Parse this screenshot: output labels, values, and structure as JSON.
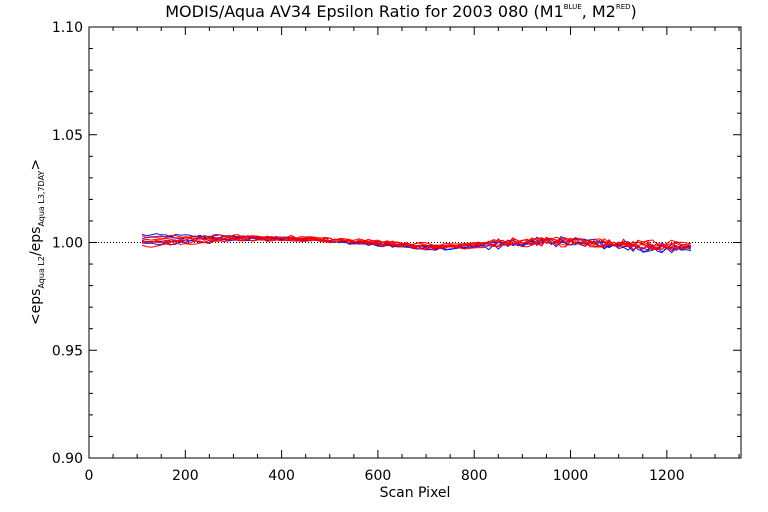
{
  "chart_data": {
    "type": "line",
    "title": {
      "main": "MODIS/Aqua AV34 Epsilon Ratio for 2003 080 (M1",
      "sup1": "BLUE",
      "mid": ", M2",
      "sup2": "RED",
      "end": ")"
    },
    "xlabel": "Scan Pixel",
    "ylabel": {
      "p1": "<eps",
      "sub1": "Aqua L2",
      "p2": "/eps",
      "sub2": "Aqua L3,7DAY",
      "p3": ">"
    },
    "xlim": [
      0,
      1354
    ],
    "ylim": [
      0.9,
      1.1
    ],
    "xticks": [
      "0",
      "200",
      "400",
      "600",
      "800",
      "1000",
      "1200"
    ],
    "xtick_values": [
      0,
      200,
      400,
      600,
      800,
      1000,
      1200
    ],
    "yticks": [
      "0.90",
      "0.95",
      "1.00",
      "1.05",
      "1.10"
    ],
    "ytick_values": [
      0.9,
      0.95,
      1.0,
      1.05,
      1.1
    ],
    "reference_line": 1.0,
    "x_range": [
      110,
      1250
    ],
    "x_step": 10,
    "blue_color": "#1010e0",
    "red_color": "#ff0000",
    "series": [
      {
        "color": "blue",
        "base": [
          [
            110,
            1.0035
          ],
          [
            300,
            1.0025
          ],
          [
            450,
            1.001
          ],
          [
            600,
            0.999
          ],
          [
            720,
            0.997
          ],
          [
            800,
            0.998
          ],
          [
            950,
            1.0
          ],
          [
            1100,
            0.998
          ],
          [
            1200,
            0.996
          ],
          [
            1250,
            0.997
          ]
        ]
      },
      {
        "color": "blue",
        "base": [
          [
            110,
            1.002
          ],
          [
            300,
            1.003
          ],
          [
            450,
            1.0015
          ],
          [
            600,
            1.0
          ],
          [
            720,
            0.9975
          ],
          [
            800,
            0.999
          ],
          [
            950,
            1.001
          ],
          [
            1100,
            0.999
          ],
          [
            1200,
            0.997
          ],
          [
            1250,
            0.998
          ]
        ]
      },
      {
        "color": "blue",
        "base": [
          [
            110,
            1.0
          ],
          [
            300,
            1.002
          ],
          [
            450,
            1.002
          ],
          [
            600,
            0.9995
          ],
          [
            720,
            0.998
          ],
          [
            800,
            0.999
          ],
          [
            950,
            1.0015
          ],
          [
            1100,
            0.999
          ],
          [
            1200,
            0.998
          ],
          [
            1250,
            0.998
          ]
        ]
      },
      {
        "color": "blue",
        "base": [
          [
            110,
            0.999
          ],
          [
            300,
            1.0015
          ],
          [
            450,
            1.0015
          ],
          [
            600,
            0.999
          ],
          [
            720,
            0.997
          ],
          [
            800,
            0.998
          ],
          [
            950,
            1.0
          ],
          [
            1100,
            0.998
          ],
          [
            1200,
            0.997
          ],
          [
            1250,
            0.997
          ]
        ]
      },
      {
        "color": "red",
        "base": [
          [
            110,
            1.0015
          ],
          [
            300,
            1.0025
          ],
          [
            450,
            1.002
          ],
          [
            600,
            1.0005
          ],
          [
            720,
            0.9985
          ],
          [
            800,
            0.999
          ],
          [
            950,
            1.001
          ],
          [
            1100,
            0.9995
          ],
          [
            1200,
            0.998
          ],
          [
            1250,
            0.999
          ]
        ]
      },
      {
        "color": "red",
        "base": [
          [
            110,
            1.0005
          ],
          [
            300,
            1.002
          ],
          [
            450,
            1.0015
          ],
          [
            600,
            1.0
          ],
          [
            720,
            0.998
          ],
          [
            800,
            0.9995
          ],
          [
            950,
            1.0005
          ],
          [
            1100,
            0.9995
          ],
          [
            1200,
            0.999
          ],
          [
            1250,
            0.9985
          ]
        ]
      },
      {
        "color": "red",
        "base": [
          [
            110,
            0.9995
          ],
          [
            300,
            1.0015
          ],
          [
            450,
            1.001
          ],
          [
            600,
            0.9995
          ],
          [
            720,
            0.9975
          ],
          [
            800,
            0.999
          ],
          [
            950,
            1.001
          ],
          [
            1100,
            0.999
          ],
          [
            1200,
            0.998
          ],
          [
            1250,
            0.998
          ]
        ]
      },
      {
        "color": "red",
        "base": [
          [
            110,
            0.998
          ],
          [
            300,
            1.001
          ],
          [
            450,
            1.0015
          ],
          [
            600,
            0.999
          ],
          [
            720,
            0.997
          ],
          [
            800,
            0.998
          ],
          [
            950,
            1.0
          ],
          [
            1100,
            0.9985
          ],
          [
            1200,
            0.9975
          ],
          [
            1250,
            0.997
          ]
        ]
      },
      {
        "color": "red",
        "base": [
          [
            110,
            1.0025
          ],
          [
            300,
            1.003
          ],
          [
            450,
            1.0025
          ],
          [
            600,
            1.0005
          ],
          [
            720,
            0.999
          ],
          [
            800,
            0.9995
          ],
          [
            950,
            1.0015
          ],
          [
            1100,
            1.0
          ],
          [
            1200,
            0.9995
          ],
          [
            1250,
            1.0
          ]
        ]
      },
      {
        "color": "red",
        "base": [
          [
            110,
            1.0
          ],
          [
            300,
            1.0025
          ],
          [
            450,
            1.002
          ],
          [
            600,
            1.0
          ],
          [
            720,
            0.998
          ],
          [
            800,
            0.999
          ],
          [
            950,
            1.0005
          ],
          [
            1100,
            0.9995
          ],
          [
            1200,
            0.998
          ],
          [
            1250,
            0.998
          ]
        ]
      }
    ]
  }
}
